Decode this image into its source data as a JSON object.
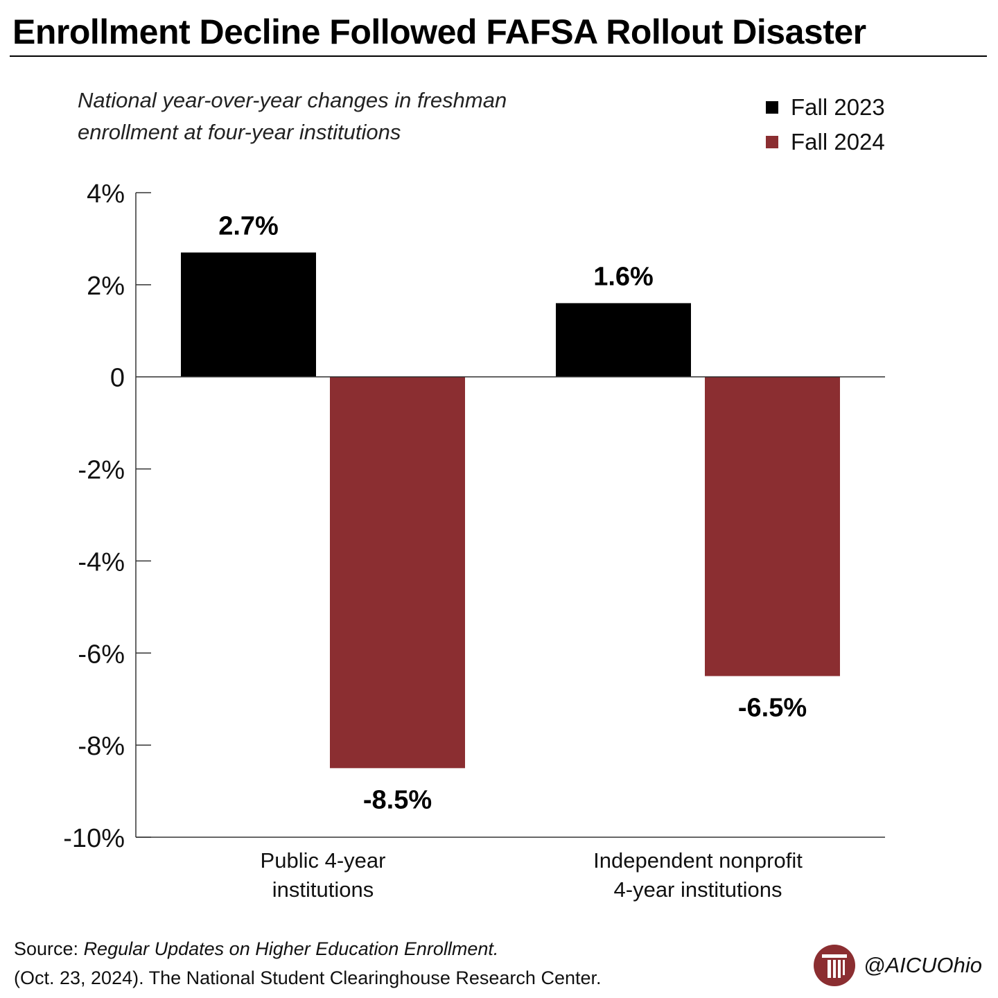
{
  "chart_data": {
    "type": "bar",
    "title": "Enrollment Decline Followed FAFSA Rollout Disaster",
    "subtitle": "National year-over-year changes in freshman enrollment at four-year institutions",
    "categories": [
      "Public 4-year institutions",
      "Independent nonprofit 4-year institutions"
    ],
    "category_lines": [
      [
        "Public 4-year",
        "institutions"
      ],
      [
        "Independent nonprofit",
        "4-year institutions"
      ]
    ],
    "series": [
      {
        "name": "Fall 2023",
        "color": "#000000",
        "values": [
          2.7,
          1.6
        ],
        "labels": [
          "2.7%",
          "1.6%"
        ]
      },
      {
        "name": "Fall 2024",
        "color": "#8b2e31",
        "values": [
          -8.5,
          -6.5
        ],
        "labels": [
          "-8.5%",
          "-6.5%"
        ]
      }
    ],
    "ylim": [
      -10,
      4
    ],
    "yticks": [
      4,
      2,
      0,
      -2,
      -4,
      -6,
      -8,
      -10
    ],
    "ytick_labels": [
      "4%",
      "2%",
      "0",
      "-2%",
      "-4%",
      "-6%",
      "-8%",
      "-10%"
    ],
    "xlabel": "",
    "ylabel": "",
    "legend_position": "top-right",
    "grid": false
  },
  "source": {
    "prefix": "Source: ",
    "reference": "Regular Updates on Higher Education Enrollment.",
    "line2": "(Oct. 23, 2024). The National Student Clearinghouse Research Center."
  },
  "brand": {
    "handle": "@AICUOhio",
    "logo_icon": "column-logo-icon",
    "logo_color": "#8b2e31"
  }
}
